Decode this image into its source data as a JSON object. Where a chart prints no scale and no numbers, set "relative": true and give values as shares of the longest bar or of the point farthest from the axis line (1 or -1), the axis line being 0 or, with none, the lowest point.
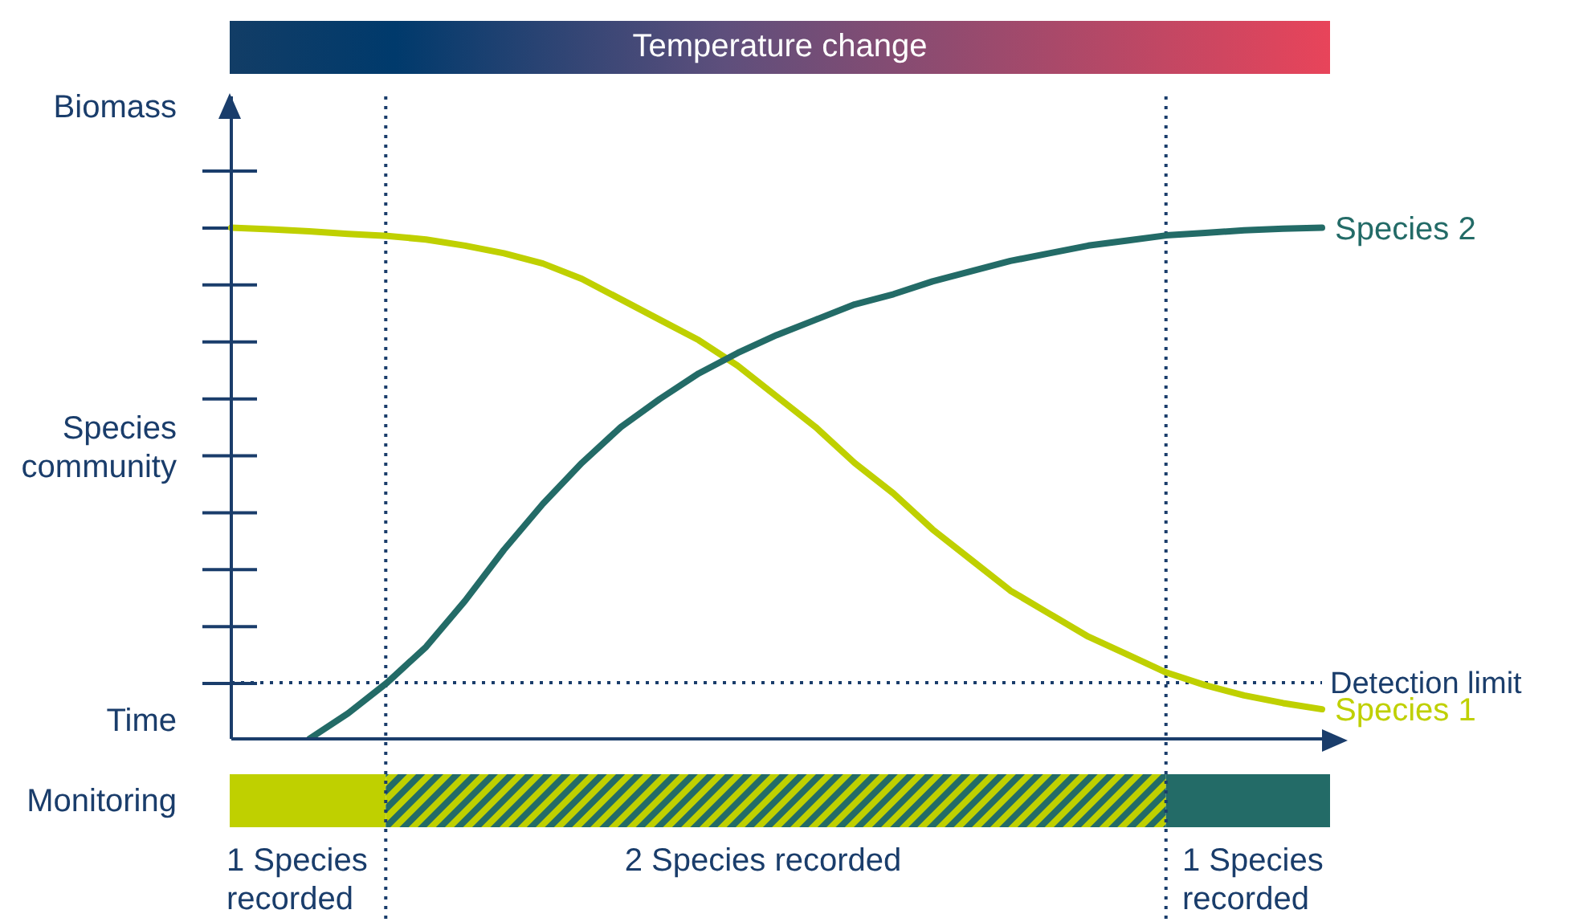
{
  "chart_data": {
    "type": "line",
    "title": "Temperature change",
    "ylabel": "Biomass",
    "xlabel": "Time",
    "relative": true,
    "marker": "none",
    "line_style": "solid",
    "annotations": [
      "Species community",
      "Monitoring",
      "1 Species recorded",
      "2 Species recorded",
      "1 Species recorded"
    ],
    "categories": [
      null,
      null,
      null,
      null,
      null,
      null,
      null,
      null,
      null,
      null,
      null,
      null,
      null,
      null,
      null,
      null,
      null,
      null,
      null,
      null,
      null,
      null,
      null,
      null,
      null,
      null,
      null,
      null,
      null
    ],
    "series": [
      {
        "name": "Species 1",
        "color": "#bfd000",
        "values": [
          1.0,
          0.997,
          0.993,
          0.988,
          0.984,
          0.977,
          0.965,
          0.95,
          0.93,
          0.9,
          0.86,
          0.82,
          0.78,
          0.73,
          0.67,
          0.61,
          0.54,
          0.48,
          0.41,
          0.35,
          0.29,
          0.245,
          0.2,
          0.165,
          0.13,
          0.105,
          0.085,
          0.07,
          0.058
        ]
      },
      {
        "name": "Species 2",
        "color": "#236b67",
        "values": [
          null,
          null,
          0,
          0.05,
          0.11,
          0.18,
          0.27,
          0.37,
          0.46,
          0.54,
          0.61,
          0.665,
          0.715,
          0.755,
          0.79,
          0.82,
          0.85,
          0.87,
          0.895,
          0.915,
          0.935,
          0.95,
          0.965,
          0.975,
          0.985,
          0.99,
          0.995,
          0.998,
          1.0
        ]
      }
    ],
    "ref_lines": [
      {
        "axis": "y",
        "value": 0.11,
        "label": "Detection limit",
        "color": "#1a3d6b",
        "line_style": "dotted"
      }
    ]
  }
}
